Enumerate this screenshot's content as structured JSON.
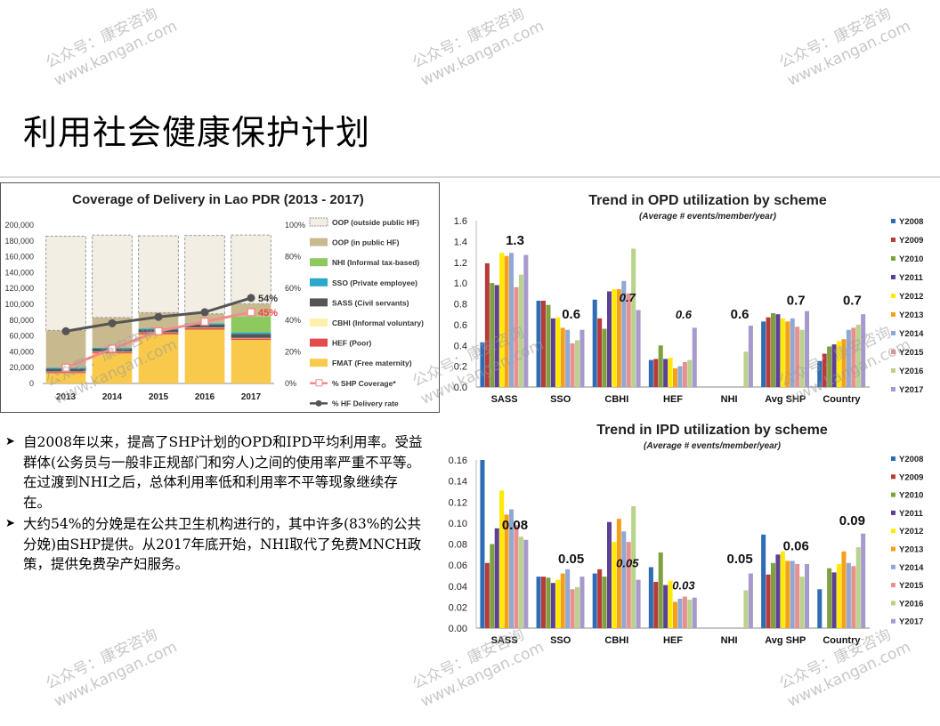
{
  "page_title": "利用社会健康保护计划",
  "watermark": {
    "line1": "公众号：康安咨询",
    "line2": "www.kangan.com"
  },
  "bullets": [
    "自2008年以来，提高了SHP计划的OPD和IPD平均利用率。受益群体(公务员与一般非正规部门和穷人)之间的使用率严重不平等。在过渡到NHI之后，总体利用率低和利用率不平等现象继续存在。",
    "大约54%的分娩是在公共卫生机构进行的，其中许多(83%的公共分娩)由SHP提供。从2017年底开始，NHI取代了免费MNCH政策，提供免费孕产妇服务。"
  ],
  "chart_data": [
    {
      "type": "bar",
      "title": "Coverage of Delivery in Lao PDR (2013 - 2017)",
      "categories": [
        "2013",
        "2014",
        "2015",
        "2016",
        "2017"
      ],
      "ylim": [
        0,
        200000
      ],
      "y_ticks": [
        "0",
        "20,000",
        "40,000",
        "60,000",
        "80,000",
        "100,000",
        "120,000",
        "140,000",
        "160,000",
        "180,000",
        "200,000"
      ],
      "y2_ticks": [
        "0%",
        "20%",
        "40%",
        "60%",
        "80%",
        "100%"
      ],
      "series": [
        {
          "name": "FMAT (Free maternity)",
          "color": "#f8c94b",
          "values": [
            13000,
            38000,
            62000,
            68000,
            55000
          ]
        },
        {
          "name": "HEF (Poor)",
          "color": "#e54b4b",
          "values": [
            1500,
            1800,
            2000,
            2000,
            2000
          ]
        },
        {
          "name": "CBHI (Informal voluntary)",
          "color": "#fdf0a8",
          "values": [
            500,
            500,
            500,
            500,
            500
          ]
        },
        {
          "name": "SASS (Civil servants)",
          "color": "#555555",
          "values": [
            3500,
            3500,
            3500,
            4000,
            5000
          ]
        },
        {
          "name": "SSO (Private employee)",
          "color": "#2aa7c9",
          "values": [
            1500,
            1500,
            1500,
            1500,
            2000
          ]
        },
        {
          "name": "NHI (Informal tax-based)",
          "color": "#8ec960",
          "values": [
            0,
            0,
            0,
            0,
            20000
          ]
        },
        {
          "name": "OOP (in public HF)",
          "color": "#c9b98f",
          "values": [
            47000,
            38000,
            20000,
            12000,
            16000
          ]
        },
        {
          "name": "OOP (outside public HF)",
          "color": "#f2eee4",
          "values": [
            119000,
            104000,
            97000,
            99000,
            87000
          ]
        }
      ],
      "lines": [
        {
          "name": "% SHP Coverage*",
          "color": "#f28c8c",
          "values": [
            10,
            22,
            33,
            39,
            45
          ]
        },
        {
          "name": "% HF Delivery rate",
          "color": "#555555",
          "values": [
            33,
            38,
            42,
            45,
            54
          ]
        }
      ],
      "line_labels": [
        "54%",
        "45%"
      ]
    },
    {
      "type": "bar",
      "title": "Trend in OPD utilization by scheme",
      "subtitle": "(Average # events/member/year)",
      "categories": [
        "SASS",
        "SSO",
        "CBHI",
        "HEF",
        "NHI",
        "Avg SHP",
        "Country"
      ],
      "ylim": [
        0,
        1.6
      ],
      "y_ticks": [
        "0.0",
        "0.2",
        "0.4",
        "0.6",
        "0.8",
        "1.0",
        "1.2",
        "1.4",
        "1.6"
      ],
      "series_names": [
        "Y2008",
        "Y2009",
        "Y2010",
        "Y2011",
        "Y2012",
        "Y2013",
        "Y2014",
        "Y2015",
        "Y2016",
        "Y2017"
      ],
      "series_colors": [
        "#2e6db5",
        "#b83a3a",
        "#7ea13d",
        "#5e3f96",
        "#ffea00",
        "#f6a01a",
        "#8fa8d6",
        "#e8908e",
        "#b9d28c",
        "#a899cc"
      ],
      "values": [
        [
          0.43,
          1.19,
          1.0,
          0.98,
          1.29,
          1.26,
          1.29,
          0.96,
          1.08,
          1.27
        ],
        [
          0.83,
          0.83,
          0.79,
          0.66,
          0.67,
          0.57,
          0.55,
          0.42,
          0.45,
          0.55
        ],
        [
          0.84,
          0.66,
          0.56,
          0.92,
          0.94,
          0.94,
          1.02,
          0.9,
          1.33,
          0.74
        ],
        [
          0.26,
          0.27,
          0.4,
          0.27,
          0.28,
          0.18,
          0.2,
          0.24,
          0.26,
          0.57
        ],
        [
          null,
          null,
          null,
          null,
          null,
          null,
          null,
          null,
          0.34,
          0.59
        ],
        [
          0.63,
          0.67,
          0.71,
          0.7,
          0.66,
          0.63,
          0.66,
          0.58,
          0.55,
          0.73
        ],
        [
          0.25,
          0.32,
          0.39,
          0.41,
          0.44,
          0.46,
          0.55,
          0.57,
          0.6,
          0.7
        ]
      ],
      "data_labels": [
        "1.3",
        "0.6",
        "0.7",
        "0.6",
        "0.6",
        "0.7",
        "0.7"
      ]
    },
    {
      "type": "bar",
      "title": "Trend in IPD utilization by scheme",
      "subtitle": "(Average # events/member/year)",
      "categories": [
        "SASS",
        "SSO",
        "CBHI",
        "HEF",
        "NHI",
        "Avg SHP",
        "Country"
      ],
      "ylim": [
        0,
        0.16
      ],
      "y_ticks": [
        "0.00",
        "0.02",
        "0.04",
        "0.06",
        "0.08",
        "0.10",
        "0.12",
        "0.14",
        "0.16"
      ],
      "series_names": [
        "Y2008",
        "Y2009",
        "Y2010",
        "Y2011",
        "Y2012",
        "Y2013",
        "Y2014",
        "Y2015",
        "Y2016",
        "Y2017"
      ],
      "series_colors": [
        "#2e6db5",
        "#b83a3a",
        "#7ea13d",
        "#5e3f96",
        "#ffea00",
        "#f6a01a",
        "#8fa8d6",
        "#e8908e",
        "#b9d28c",
        "#a899cc"
      ],
      "values": [
        [
          0.16,
          0.062,
          0.08,
          0.095,
          0.131,
          0.108,
          0.113,
          0.098,
          0.087,
          0.084
        ],
        [
          0.049,
          0.049,
          0.048,
          0.043,
          0.046,
          0.052,
          0.056,
          0.037,
          0.039,
          0.049
        ],
        [
          0.052,
          0.056,
          0.049,
          0.101,
          0.082,
          0.104,
          0.092,
          0.082,
          0.116,
          0.046
        ],
        [
          0.058,
          0.044,
          0.072,
          0.041,
          0.045,
          0.025,
          0.028,
          0.03,
          0.027,
          0.029
        ],
        [
          null,
          null,
          null,
          null,
          null,
          null,
          null,
          null,
          0.036,
          0.052
        ],
        [
          0.089,
          0.051,
          0.062,
          0.07,
          0.073,
          0.064,
          0.064,
          0.061,
          0.049,
          0.061
        ],
        [
          0.037,
          null,
          0.057,
          0.053,
          0.061,
          0.073,
          0.062,
          0.059,
          0.077,
          0.09
        ]
      ],
      "data_labels": [
        "0.08",
        "0.05",
        "0.05",
        "0.03",
        "0.05",
        "0.06",
        "0.09"
      ]
    }
  ]
}
